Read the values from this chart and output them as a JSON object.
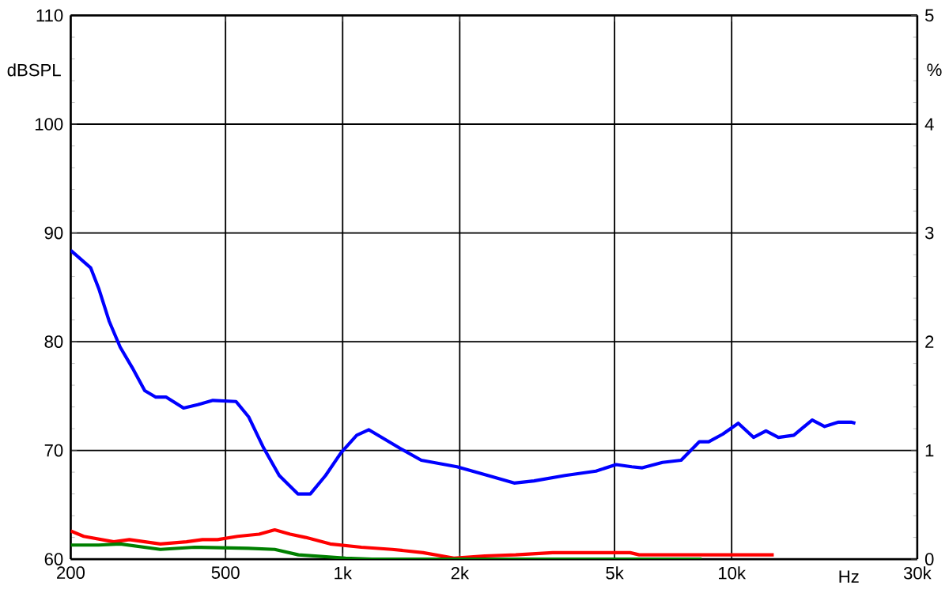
{
  "chart_data": {
    "type": "line",
    "xlabel": "Hz",
    "ylabel": "dBSPL",
    "y2label": "%",
    "log": "x",
    "grid": true,
    "marker": "none",
    "line_style": "solid",
    "xlim": [
      200,
      30000
    ],
    "xticks": [
      200,
      500,
      {
        "value": 1000,
        "label": "1k"
      },
      {
        "value": 2000,
        "label": "2k"
      },
      {
        "value": 5000,
        "label": "5k"
      },
      {
        "value": 10000,
        "label": "10k"
      },
      {
        "value": 30000,
        "label": "30k"
      }
    ],
    "ylim": [
      60,
      110
    ],
    "yticks": [
      60,
      70,
      80,
      90,
      100,
      110
    ],
    "y2lim": [
      0,
      5
    ],
    "y2ticks": [
      0,
      1,
      2,
      3,
      4,
      5
    ],
    "series": [
      {
        "color": "#0000ff",
        "x": [
          200,
          225,
          236,
          251,
          268,
          288,
          310,
          331,
          352,
          390,
          424,
          464,
          532,
          573,
          627,
          687,
          767,
          826,
          904,
          991,
          1087,
          1168,
          1403,
          1593,
          1968,
          2362,
          2760,
          3105,
          3733,
          4479,
          5047,
          5534,
          5893,
          6640,
          7415,
          8262,
          8730,
          9486,
          10400,
          11380,
          12250,
          13190,
          14450,
          16110,
          17340,
          18830,
          20280,
          20800
        ],
        "values": [
          88.4,
          86.8,
          84.9,
          81.9,
          79.5,
          77.6,
          75.5,
          74.9,
          74.9,
          73.9,
          74.2,
          74.6,
          74.5,
          73.1,
          70.2,
          67.7,
          66.0,
          66.0,
          67.7,
          69.8,
          71.4,
          71.9,
          70.2,
          69.1,
          68.5,
          67.7,
          67.0,
          67.2,
          67.7,
          68.1,
          68.7,
          68.5,
          68.4,
          68.9,
          69.1,
          70.8,
          70.8,
          71.5,
          72.5,
          71.2,
          71.8,
          71.2,
          71.4,
          72.8,
          72.2,
          72.6,
          72.6,
          72.5
        ]
      },
      {
        "color": "#ff0000",
        "axis": "y2",
        "x": [
          200,
          216,
          258,
          283,
          340,
          397,
          436,
          477,
          537,
          610,
          669,
          733,
          803,
          929,
          1117,
          1340,
          1610,
          1932,
          2319,
          2785,
          3467,
          5482,
          5786,
          12830
        ],
        "values": [
          0.26,
          0.21,
          0.16,
          0.18,
          0.14,
          0.16,
          0.18,
          0.18,
          0.21,
          0.23,
          0.27,
          0.23,
          0.2,
          0.14,
          0.11,
          0.09,
          0.06,
          0.01,
          0.03,
          0.04,
          0.06,
          0.06,
          0.04,
          0.04
        ]
      },
      {
        "color": "#008000",
        "axis": "y2",
        "x": [
          200,
          236,
          268,
          340,
          416,
          573,
          669,
          770,
          1017,
          1190,
          8370
        ],
        "values": [
          0.13,
          0.13,
          0.14,
          0.09,
          0.11,
          0.1,
          0.09,
          0.04,
          0.01,
          0,
          0
        ]
      }
    ]
  }
}
